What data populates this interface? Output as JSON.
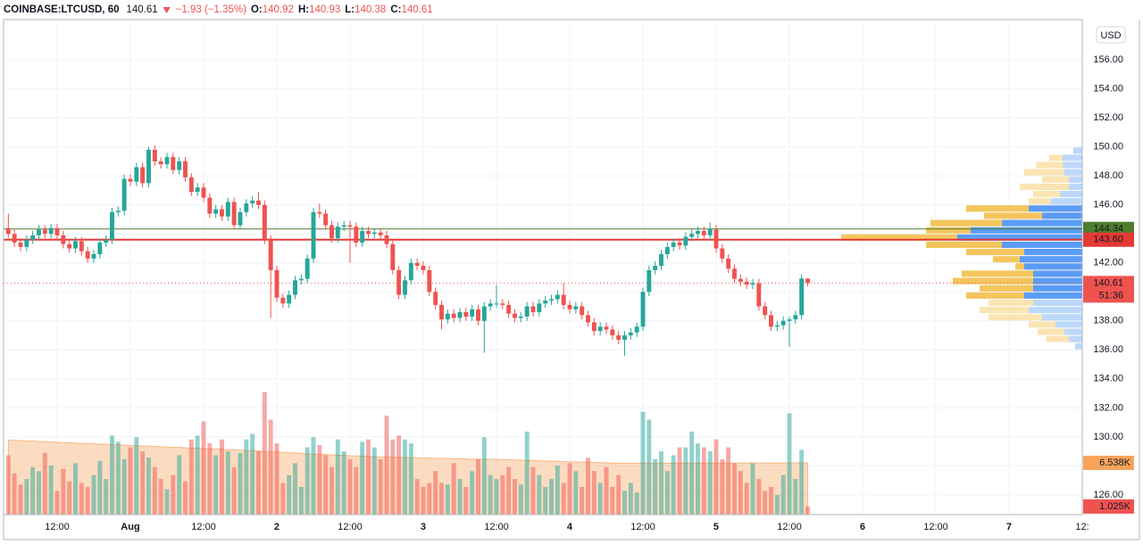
{
  "chart_data": {
    "type": "candlestick",
    "header": {
      "symbol": "COINBASE:LTCUSD, 60",
      "last": 140.61,
      "change": "−1.93 (−1.35%)",
      "open_label": "O:",
      "open": 140.92,
      "high_label": "H:",
      "high": 140.93,
      "low_label": "L:",
      "low": 140.38,
      "close_label": "C:",
      "close": 140.61
    },
    "currency": "USD",
    "colors": {
      "up": "#26a69a",
      "down": "#ef5350"
    },
    "xlim": [
      -0.78,
      176
    ],
    "xticks": [
      {
        "value": 8,
        "label": "12:00"
      },
      {
        "value": 20,
        "label": "Aug"
      },
      {
        "value": 32,
        "label": "12:00"
      },
      {
        "value": 44,
        "label": "2"
      },
      {
        "value": 56,
        "label": "12:00"
      },
      {
        "value": 68,
        "label": "3"
      },
      {
        "value": 80,
        "label": "12:00"
      },
      {
        "value": 92,
        "label": "4"
      },
      {
        "value": 104,
        "label": "12:00"
      },
      {
        "value": 116,
        "label": "5"
      },
      {
        "value": 128,
        "label": "12:00"
      },
      {
        "value": 140,
        "label": "6"
      },
      {
        "value": 152,
        "label": "12:00"
      },
      {
        "value": 164,
        "label": "7"
      },
      {
        "value": 176,
        "label": "12:"
      }
    ],
    "ylim": [
      124.64,
      158.78
    ],
    "yticks": [
      {
        "value": 126,
        "label": "126.00"
      },
      {
        "value": 128,
        "label": "128.00"
      },
      {
        "value": 130,
        "label": "130.00"
      },
      {
        "value": 132,
        "label": "132.00"
      },
      {
        "value": 134,
        "label": "134.00"
      },
      {
        "value": 136,
        "label": "136.00"
      },
      {
        "value": 138,
        "label": "138.00"
      },
      {
        "value": 140,
        "label": "140.00"
      },
      {
        "value": 142,
        "label": "142.00"
      },
      {
        "value": 144,
        "label": "144.00"
      },
      {
        "value": 146,
        "label": "146.00"
      },
      {
        "value": 148,
        "label": "148.00"
      },
      {
        "value": 150,
        "label": "150.00"
      },
      {
        "value": 152,
        "label": "152.00"
      },
      {
        "value": 154,
        "label": "154.00"
      },
      {
        "value": 156,
        "label": "156.00"
      }
    ],
    "grid": true,
    "series": [
      {
        "open": [
          144.4,
          144.0,
          143.4,
          143.1,
          143.6,
          143.9,
          144.3,
          144.0,
          144.4,
          143.9,
          143.3,
          143.0,
          143.5,
          142.8,
          142.3,
          142.6,
          143.4,
          143.6,
          145.5,
          145.6,
          147.8,
          147.6,
          148.6,
          147.5,
          149.8,
          149.0,
          148.8,
          149.3,
          148.4,
          149.0,
          147.9,
          146.9,
          147.2,
          146.5,
          145.4,
          145.7,
          145.2,
          146.2,
          144.6,
          145.5,
          146.1,
          146.3,
          146.0,
          143.6,
          141.5,
          139.6,
          139.2,
          139.8,
          140.8,
          140.9,
          142.3,
          145.5,
          145.4,
          144.6,
          143.7,
          144.5,
          144.6,
          144.5,
          143.4,
          144.2,
          144.0,
          144.1,
          143.9,
          143.3,
          141.5,
          139.8,
          140.8,
          142.0,
          141.8,
          141.5,
          140.0,
          139.1,
          138.1,
          138.5,
          138.2,
          138.6,
          138.3,
          138.8,
          138.0,
          139.0,
          139.2,
          139.2,
          139.1,
          138.5,
          138.2,
          138.3,
          139.0,
          138.6,
          139.2,
          139.4,
          139.5,
          139.8,
          139.1,
          138.8,
          139.0,
          138.4,
          137.9,
          137.3,
          137.6,
          137.4,
          137.0,
          136.7,
          137.0,
          137.2,
          137.6,
          140.0,
          141.5,
          141.8,
          142.6,
          143.1,
          143.4,
          143.2,
          143.8,
          144.0,
          144.2,
          143.9,
          144.3,
          143.0,
          142.3,
          141.6,
          140.9,
          140.7,
          140.5,
          140.6,
          139.0,
          138.4,
          137.6,
          137.7,
          138.0,
          138.1,
          138.4,
          140.92
        ],
        "high": [
          145.4,
          144.3,
          143.7,
          143.9,
          144.2,
          144.6,
          144.6,
          144.7,
          144.7,
          144.2,
          143.6,
          143.8,
          143.8,
          143.1,
          142.9,
          143.7,
          143.9,
          145.8,
          145.9,
          148.1,
          148.1,
          148.9,
          148.9,
          150.0,
          150.1,
          149.3,
          149.6,
          149.6,
          149.3,
          149.3,
          148.2,
          147.5,
          147.5,
          146.8,
          146.0,
          146.0,
          146.5,
          146.5,
          145.8,
          146.4,
          146.6,
          146.9,
          146.3,
          143.9,
          141.8,
          139.9,
          140.1,
          141.1,
          141.2,
          142.6,
          145.8,
          146.1,
          145.7,
          144.9,
          144.8,
          144.9,
          144.9,
          144.8,
          144.5,
          144.5,
          144.4,
          144.4,
          144.2,
          143.6,
          141.8,
          141.1,
          142.3,
          142.3,
          142.1,
          141.8,
          140.3,
          139.4,
          138.8,
          138.8,
          138.9,
          138.9,
          139.1,
          139.1,
          139.3,
          139.5,
          140.5,
          139.5,
          139.4,
          138.8,
          138.6,
          139.3,
          139.3,
          139.5,
          139.7,
          139.8,
          140.1,
          140.6,
          139.4,
          139.3,
          139.3,
          138.7,
          138.2,
          137.9,
          137.9,
          137.7,
          137.3,
          137.3,
          137.5,
          137.9,
          140.3,
          141.8,
          142.1,
          142.9,
          143.4,
          143.7,
          143.7,
          144.1,
          144.3,
          144.5,
          144.5,
          144.8,
          144.6,
          143.3,
          142.6,
          141.9,
          141.2,
          141.0,
          140.9,
          140.9,
          139.3,
          138.7,
          138.0,
          138.3,
          138.3,
          138.7,
          141.2,
          140.93
        ],
        "low": [
          143.7,
          143.1,
          142.8,
          142.8,
          143.3,
          143.6,
          143.7,
          143.7,
          143.6,
          143.0,
          142.7,
          142.7,
          142.5,
          142.0,
          142.0,
          142.3,
          143.1,
          143.3,
          145.2,
          145.3,
          147.3,
          147.3,
          147.2,
          147.2,
          148.7,
          148.5,
          148.5,
          148.1,
          148.1,
          147.6,
          146.6,
          146.6,
          146.2,
          145.1,
          145.1,
          144.9,
          144.9,
          144.3,
          144.3,
          145.2,
          145.8,
          145.7,
          143.3,
          138.2,
          139.3,
          138.9,
          138.9,
          139.5,
          140.5,
          140.6,
          142.0,
          145.1,
          144.3,
          143.4,
          143.4,
          144.2,
          142.0,
          143.1,
          143.1,
          143.7,
          143.7,
          143.6,
          143.0,
          141.2,
          139.5,
          139.5,
          140.5,
          141.5,
          141.2,
          139.7,
          138.8,
          137.4,
          137.8,
          137.9,
          137.9,
          138.0,
          138.0,
          137.7,
          135.8,
          138.7,
          138.9,
          138.8,
          138.2,
          137.9,
          137.9,
          138.0,
          138.3,
          138.3,
          138.9,
          139.1,
          139.2,
          138.8,
          138.5,
          138.5,
          138.1,
          137.6,
          137.0,
          137.0,
          137.1,
          136.7,
          136.4,
          135.6,
          136.7,
          136.9,
          137.3,
          139.7,
          141.2,
          141.5,
          142.3,
          142.8,
          142.9,
          142.9,
          143.5,
          143.7,
          143.6,
          143.6,
          142.7,
          142.0,
          141.3,
          140.6,
          140.4,
          140.2,
          140.2,
          138.7,
          138.1,
          137.3,
          137.3,
          137.4,
          136.2,
          137.8,
          138.1,
          140.38
        ],
        "close": [
          144.0,
          143.4,
          143.1,
          143.6,
          143.9,
          144.3,
          144.0,
          144.4,
          143.9,
          143.3,
          143.0,
          143.5,
          142.8,
          142.3,
          142.6,
          143.4,
          143.6,
          145.5,
          145.6,
          147.8,
          147.6,
          148.6,
          147.5,
          149.8,
          149.0,
          148.8,
          149.3,
          148.4,
          149.0,
          147.9,
          146.9,
          147.2,
          146.5,
          145.4,
          145.7,
          145.2,
          146.2,
          144.6,
          145.5,
          146.1,
          146.3,
          146.0,
          143.6,
          141.5,
          139.6,
          139.2,
          139.8,
          140.8,
          140.9,
          142.3,
          145.5,
          145.4,
          144.6,
          143.7,
          144.5,
          144.6,
          144.5,
          143.4,
          144.2,
          144.0,
          144.1,
          143.9,
          143.3,
          141.5,
          139.8,
          140.8,
          142.0,
          141.8,
          141.5,
          140.0,
          139.1,
          138.1,
          138.5,
          138.2,
          138.6,
          138.3,
          138.8,
          138.0,
          139.0,
          139.2,
          139.2,
          139.1,
          138.5,
          138.2,
          138.3,
          139.0,
          138.6,
          139.2,
          139.4,
          139.5,
          139.8,
          139.1,
          138.8,
          139.0,
          138.4,
          137.9,
          137.3,
          137.6,
          137.4,
          137.0,
          136.7,
          137.0,
          137.2,
          137.6,
          140.0,
          141.5,
          141.8,
          142.6,
          143.1,
          143.4,
          143.2,
          143.8,
          144.0,
          144.2,
          143.9,
          144.3,
          143.0,
          142.3,
          141.6,
          140.9,
          140.7,
          140.5,
          140.6,
          139.0,
          138.4,
          137.6,
          137.7,
          138.0,
          138.1,
          138.4,
          140.92,
          140.61
        ],
        "volume": [
          7.5,
          5.2,
          3.8,
          4.5,
          6.0,
          5.5,
          7.8,
          6.2,
          3.0,
          5.8,
          4.2,
          6.5,
          4.0,
          3.5,
          5.0,
          6.8,
          4.5,
          10.0,
          9.2,
          7.0,
          8.5,
          9.8,
          8.0,
          7.2,
          6.0,
          4.5,
          3.2,
          5.0,
          7.5,
          4.2,
          9.5,
          10.0,
          11.8,
          9.0,
          7.5,
          9.5,
          8.0,
          6.0,
          7.8,
          9.5,
          10.2,
          8.0,
          15.5,
          12.0,
          9.0,
          4.0,
          5.0,
          6.5,
          3.5,
          8.5,
          9.8,
          8.8,
          7.5,
          6.0,
          9.5,
          8.0,
          7.0,
          6.0,
          9.2,
          9.5,
          8.5,
          7.0,
          12.5,
          9.5,
          10.0,
          9.5,
          9.0,
          4.5,
          3.5,
          4.0,
          5.5,
          4.0,
          3.8,
          6.5,
          4.5,
          3.5,
          5.5,
          7.0,
          9.8,
          5.0,
          4.5,
          5.0,
          6.0,
          4.5,
          3.8,
          10.5,
          6.0,
          5.0,
          3.5,
          4.5,
          6.2,
          4.0,
          6.5,
          5.5,
          3.5,
          7.2,
          5.5,
          4.0,
          6.0,
          3.5,
          5.0,
          3.0,
          4.0,
          2.8,
          13.0,
          12.0,
          7.0,
          8.0,
          5.5,
          7.5,
          8.5,
          8.5,
          10.5,
          9.0,
          8.5,
          8.0,
          9.5,
          7.0,
          8.5,
          6.5,
          5.5,
          4.0,
          6.5,
          4.5,
          3.0,
          3.5,
          2.5,
          5.0,
          12.8,
          4.5,
          8.2,
          1.025
        ],
        "volume_ma": [
          9.4,
          9.4,
          9.35,
          9.3,
          9.3,
          9.25,
          9.2,
          9.2,
          9.15,
          9.1,
          9.1,
          9.05,
          9.0,
          9.0,
          8.95,
          8.9,
          8.9,
          8.85,
          8.8,
          8.8,
          8.75,
          8.7,
          8.7,
          8.65,
          8.6,
          8.6,
          8.55,
          8.5,
          8.5,
          8.45,
          8.4,
          8.4,
          8.35,
          8.3,
          8.3,
          8.25,
          8.2,
          8.2,
          8.15,
          8.1,
          8.1,
          8.05,
          8.0,
          7.95,
          7.9,
          7.85,
          7.8,
          7.8,
          7.75,
          7.7,
          7.65,
          7.6,
          7.6,
          7.55,
          7.5,
          7.5,
          7.45,
          7.4,
          7.4,
          7.35,
          7.3,
          7.3,
          7.3,
          7.25,
          7.25,
          7.2,
          7.2,
          7.2,
          7.15,
          7.15,
          7.1,
          7.1,
          7.1,
          7.05,
          7.05,
          7.05,
          7.0,
          7.0,
          7.0,
          7.0,
          7.0,
          6.95,
          6.95,
          6.9,
          6.9,
          6.85,
          6.85,
          6.8,
          6.8,
          6.75,
          6.75,
          6.7,
          6.7,
          6.65,
          6.65,
          6.6,
          6.6,
          6.55,
          6.55,
          6.5,
          6.5,
          6.5,
          6.5,
          6.5,
          6.5,
          6.5,
          6.5,
          6.5,
          6.5,
          6.5,
          6.5,
          6.5,
          6.5,
          6.5,
          6.52,
          6.52,
          6.52,
          6.52,
          6.52,
          6.52,
          6.53,
          6.53,
          6.53,
          6.53,
          6.53,
          6.53,
          6.53,
          6.53,
          6.538,
          6.538,
          6.538,
          6.538
        ]
      }
    ],
    "volume_ylim": [
      0,
      62.6
    ],
    "volume_labels": [
      {
        "value": 6.538,
        "label": "6.538K",
        "color": "#f7a35c"
      },
      {
        "value": 1.025,
        "label": "1.025K",
        "color": "#ef5350"
      }
    ],
    "price_lines": [
      {
        "value": 144.34,
        "label": "144.34",
        "color": "#4e7d2f"
      },
      {
        "value": 143.6,
        "label": "143.60",
        "color": "#e53935"
      }
    ],
    "current_price": {
      "value": 140.61,
      "label": "140.61",
      "countdown": "51:36",
      "color": "#ef5350"
    },
    "volume_profile": {
      "prices": [
        149.5,
        149.0,
        148.5,
        148.0,
        147.5,
        147.0,
        146.5,
        146.0,
        145.5,
        145.0,
        144.5,
        144.0,
        143.5,
        143.0,
        142.5,
        142.0,
        141.5,
        141.0,
        140.5,
        140.0,
        139.5,
        139.0,
        138.5,
        138.0,
        137.5,
        137.0,
        136.5,
        136.0
      ],
      "up": [
        10,
        22,
        22,
        20,
        15,
        15,
        25,
        35,
        60,
        45,
        90,
        125,
        140,
        90,
        65,
        70,
        65,
        55,
        55,
        55,
        65,
        55,
        60,
        45,
        30,
        20,
        15,
        8
      ],
      "down": [
        0,
        15,
        30,
        45,
        30,
        55,
        30,
        25,
        70,
        65,
        80,
        50,
        130,
        85,
        65,
        30,
        10,
        80,
        90,
        60,
        65,
        50,
        55,
        60,
        30,
        30,
        25,
        0
      ],
      "xlim": [
        0,
        270
      ],
      "value_area": [
        139.5,
        146.0
      ],
      "colors": {
        "up": "#5b9cf6",
        "down": "#f4c55c",
        "up_outside": "#bcd8fa",
        "down_outside": "#fae4b3"
      }
    }
  }
}
